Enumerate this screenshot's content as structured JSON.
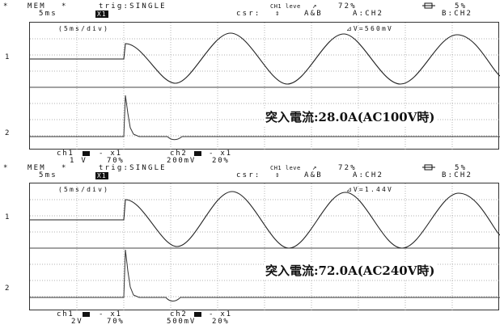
{
  "panels": [
    {
      "header": {
        "star": "*",
        "mem": "MEM",
        "mem_star": "*",
        "timebase": "5ms",
        "x1_box": "X1",
        "trig": "trig:SINGLE",
        "csr": "csr:",
        "csr_sym": "⇕",
        "ch1_level": "CH1 leve",
        "level_arrow": "↗",
        "level_pct": "72%",
        "ab": "A&B",
        "a_ch": "A:CH2",
        "b_ch": "B:CH2",
        "pre_icon": "pretrigger-icon",
        "pre_pct": "5%"
      },
      "grid_label_div": "(5ms/div)",
      "delta_v": "⊿V=560mV",
      "marker_1": "1",
      "marker_2": "2",
      "annotation": "突入電流:28.0A(AC100V時)",
      "footer": {
        "ch1": "ch1",
        "ch1_range": "1 V",
        "ch1_pos": "70%",
        "ch1_mult": "- x1",
        "ch2": "ch2",
        "ch2_range": "200mV",
        "ch2_pos": "20%",
        "ch2_mult": "- x1"
      }
    },
    {
      "header": {
        "star": "*",
        "mem": "MEM",
        "mem_star": "*",
        "timebase": "5ms",
        "x1_box": "X1",
        "trig": "trig:SINGLE",
        "csr": "csr:",
        "csr_sym": "⇕",
        "ch1_level": "CH1 leve",
        "level_arrow": "↗",
        "level_pct": "72%",
        "ab": "A&B",
        "a_ch": "A:CH2",
        "b_ch": "B:CH2",
        "pre_icon": "pretrigger-icon",
        "pre_pct": "5%"
      },
      "grid_label_div": "(5ms/div)",
      "delta_v": "⊿V=1.44V",
      "marker_1": "1",
      "marker_2": "2",
      "annotation": "突入電流:72.0A(AC240V時)",
      "footer": {
        "ch1": "ch1",
        "ch1_range": "2V",
        "ch1_pos": "70%",
        "ch1_mult": "- x1",
        "ch2": "ch2",
        "ch2_range": "500mV",
        "ch2_pos": "20%",
        "ch2_mult": "- x1"
      }
    }
  ]
}
